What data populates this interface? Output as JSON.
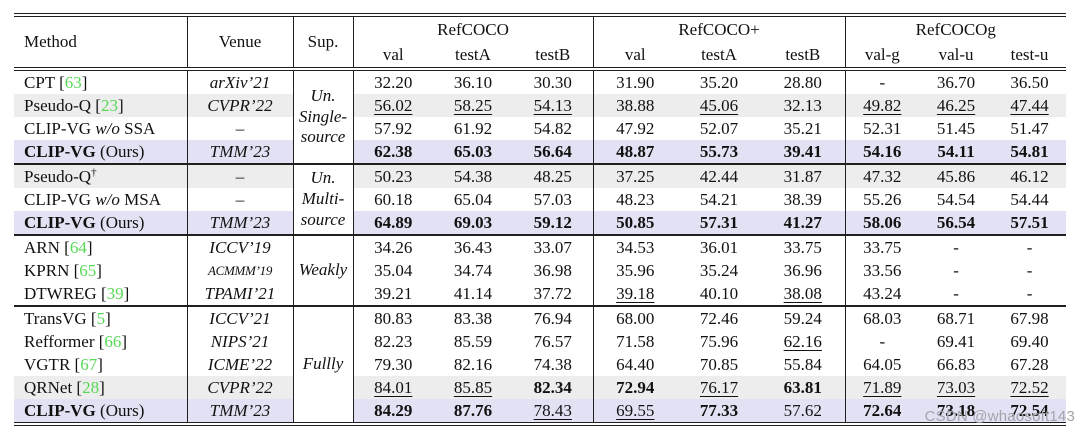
{
  "colors": {
    "citation_green": "#57d957",
    "row_highlight_gray": "#ededed",
    "row_highlight_lavender": "#e2e2f4",
    "rule": "#1f1f1f",
    "watermark_gray": "#a2a6ab"
  },
  "watermark": "CSDN @whaosoft143",
  "table": {
    "header": {
      "method": "Method",
      "venue": "Venue",
      "sup": "Sup.",
      "groups": [
        {
          "label": "RefCOCO",
          "cols": [
            "val",
            "testA",
            "testB"
          ]
        },
        {
          "label": "RefCOCO+",
          "cols": [
            "val",
            "testA",
            "testB"
          ]
        },
        {
          "label": "RefCOCOg",
          "cols": [
            "val-g",
            "val-u",
            "test-u"
          ]
        }
      ]
    },
    "blocks": [
      {
        "sup_lines": [
          "Un.",
          "Single-",
          "source"
        ],
        "rows": [
          {
            "name": "CPT",
            "cite": "63",
            "venue": "arXiv’21",
            "values": [
              "32.20",
              "36.10",
              "30.30",
              "31.90",
              "35.20",
              "28.80",
              "-",
              "36.70",
              "36.50"
            ],
            "marks": [
              "",
              "",
              "",
              "",
              "",
              "",
              "",
              "",
              ""
            ]
          },
          {
            "name": "Pseudo-Q",
            "cite": "23",
            "venue": "CVPR’22",
            "bg": "gray",
            "values": [
              "56.02",
              "58.25",
              "54.13",
              "38.88",
              "45.06",
              "32.13",
              "49.82",
              "46.25",
              "47.44"
            ],
            "marks": [
              "u",
              "u",
              "u",
              "",
              "u",
              "",
              "u",
              "u",
              "u"
            ]
          },
          {
            "name": "CLIP-VG",
            "tail": "w/o SSA",
            "venue": "–",
            "values": [
              "57.92",
              "61.92",
              "54.82",
              "47.92",
              "52.07",
              "35.21",
              "52.31",
              "51.45",
              "51.47"
            ],
            "marks": [
              "",
              "",
              "",
              "",
              "",
              "",
              "",
              "",
              ""
            ]
          },
          {
            "name": "CLIP-VG",
            "bold": true,
            "tail": "(Ours)",
            "venue": "TMM’23",
            "bg": "lav",
            "values": [
              "62.38",
              "65.03",
              "56.64",
              "48.87",
              "55.73",
              "39.41",
              "54.16",
              "54.11",
              "54.81"
            ],
            "marks": [
              "b",
              "b",
              "b",
              "b",
              "b",
              "b",
              "b",
              "b",
              "b"
            ]
          }
        ]
      },
      {
        "sup_lines": [
          "Un.",
          "Multi-",
          "source"
        ],
        "rows": [
          {
            "name": "Pseudo-Q",
            "dagger": "†",
            "venue": "–",
            "bg": "gray",
            "values": [
              "50.23",
              "54.38",
              "48.25",
              "37.25",
              "42.44",
              "31.87",
              "47.32",
              "45.86",
              "46.12"
            ],
            "marks": [
              "",
              "",
              "",
              "",
              "",
              "",
              "",
              "",
              ""
            ]
          },
          {
            "name": "CLIP-VG",
            "tail": "w/o MSA",
            "venue": "–",
            "values": [
              "60.18",
              "65.04",
              "57.03",
              "48.23",
              "54.21",
              "38.39",
              "55.26",
              "54.54",
              "54.44"
            ],
            "marks": [
              "",
              "",
              "",
              "",
              "",
              "",
              "",
              "",
              ""
            ]
          },
          {
            "name": "CLIP-VG",
            "bold": true,
            "tail": "(Ours)",
            "venue": "TMM’23",
            "bg": "lav",
            "values": [
              "64.89",
              "69.03",
              "59.12",
              "50.85",
              "57.31",
              "41.27",
              "58.06",
              "56.54",
              "57.51"
            ],
            "marks": [
              "b",
              "b",
              "b",
              "b",
              "b",
              "b",
              "b",
              "b",
              "b"
            ]
          }
        ]
      },
      {
        "sup_lines": [
          "Weakly"
        ],
        "rows": [
          {
            "name": "ARN",
            "cite": "64",
            "venue": "ICCV’19",
            "values": [
              "34.26",
              "36.43",
              "33.07",
              "34.53",
              "36.01",
              "33.75",
              "33.75",
              "-",
              "-"
            ],
            "marks": [
              "",
              "",
              "",
              "",
              "",
              "",
              "",
              "",
              ""
            ]
          },
          {
            "name": "KPRN",
            "cite": "65",
            "venue": "ACMMM’19",
            "venue_small": true,
            "values": [
              "35.04",
              "34.74",
              "36.98",
              "35.96",
              "35.24",
              "36.96",
              "33.56",
              "-",
              "-"
            ],
            "marks": [
              "",
              "",
              "",
              "",
              "",
              "",
              "",
              "",
              ""
            ]
          },
          {
            "name": "DTWREG",
            "cite": "39",
            "venue": "TPAMI’21",
            "values": [
              "39.21",
              "41.14",
              "37.72",
              "39.18",
              "40.10",
              "38.08",
              "43.24",
              "-",
              "-"
            ],
            "marks": [
              "",
              "",
              "",
              "u",
              "",
              "u",
              "",
              "",
              ""
            ]
          }
        ]
      },
      {
        "sup_lines": [
          "Fullly"
        ],
        "rows": [
          {
            "name": "TransVG",
            "cite": "5",
            "venue": "ICCV’21",
            "values": [
              "80.83",
              "83.38",
              "76.94",
              "68.00",
              "72.46",
              "59.24",
              "68.03",
              "68.71",
              "67.98"
            ],
            "marks": [
              "",
              "",
              "",
              "",
              "",
              "",
              "",
              "",
              ""
            ]
          },
          {
            "name": "Refformer",
            "cite": "66",
            "venue": "NIPS’21",
            "values": [
              "82.23",
              "85.59",
              "76.57",
              "71.58",
              "75.96",
              "62.16",
              "-",
              "69.41",
              "69.40"
            ],
            "marks": [
              "",
              "",
              "",
              "",
              "",
              "u",
              "",
              "",
              ""
            ]
          },
          {
            "name": "VGTR",
            "cite": "67",
            "venue": "ICME’22",
            "values": [
              "79.30",
              "82.16",
              "74.38",
              "64.40",
              "70.85",
              "55.84",
              "64.05",
              "66.83",
              "67.28"
            ],
            "marks": [
              "",
              "",
              "",
              "",
              "",
              "",
              "",
              "",
              ""
            ]
          },
          {
            "name": "QRNet",
            "cite": "28",
            "venue": "CVPR’22",
            "bg": "gray",
            "values": [
              "84.01",
              "85.85",
              "82.34",
              "72.94",
              "76.17",
              "63.81",
              "71.89",
              "73.03",
              "72.52"
            ],
            "marks": [
              "u",
              "u",
              "b",
              "b",
              "u",
              "b",
              "u",
              "u",
              "u"
            ]
          },
          {
            "name": "CLIP-VG",
            "bold": true,
            "tail": "(Ours)",
            "venue": "TMM’23",
            "bg": "lav",
            "values": [
              "84.29",
              "87.76",
              "78.43",
              "69.55",
              "77.33",
              "57.62",
              "72.64",
              "73.18",
              "72.54"
            ],
            "marks": [
              "b",
              "b",
              "u",
              "u",
              "b",
              "",
              "b",
              "b",
              "b"
            ]
          }
        ]
      }
    ]
  }
}
